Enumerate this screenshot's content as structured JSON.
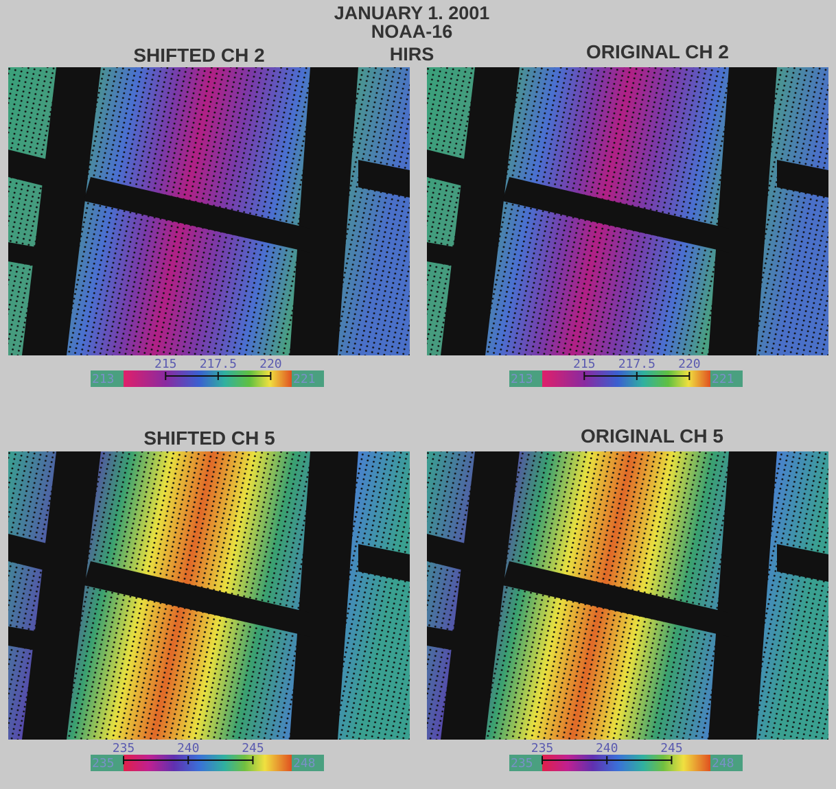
{
  "header": {
    "lines": [
      "JANUARY 1. 2001",
      "NOAA-16",
      "HIRS"
    ]
  },
  "panels": [
    {
      "title": "SHIFTED  CH 2",
      "colorbar": {
        "min": 213,
        "max": 221,
        "ticks": [
          215,
          217.5,
          220
        ]
      }
    },
    {
      "title": "ORIGINAL  CH 2",
      "colorbar": {
        "min": 213,
        "max": 221,
        "ticks": [
          215,
          217.5,
          220
        ]
      }
    },
    {
      "title": "SHIFTED  CH 5",
      "colorbar": {
        "min": 235,
        "max": 248,
        "ticks": [
          235,
          240,
          245
        ]
      }
    },
    {
      "title": "ORIGINAL  CH 5",
      "colorbar": {
        "min": 235,
        "max": 248,
        "ticks": [
          235,
          240,
          245
        ]
      }
    }
  ]
}
